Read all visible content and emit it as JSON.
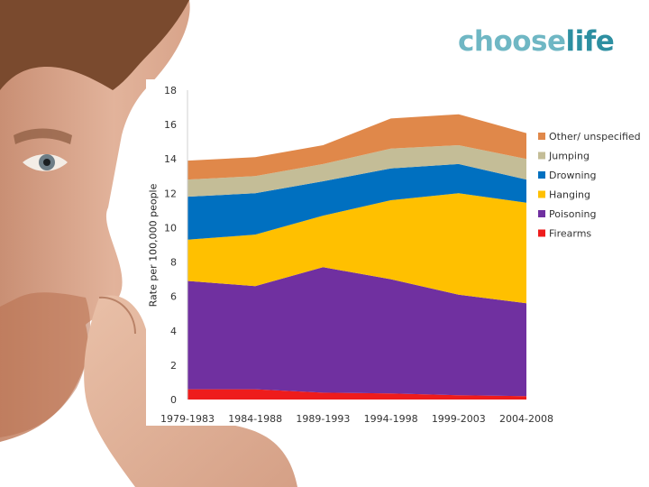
{
  "brand": {
    "part1": "choose",
    "part2": "life"
  },
  "chart_data": {
    "type": "area",
    "stacked": true,
    "categories": [
      "1979-1983",
      "1984-1988",
      "1989-1993",
      "1994-1998",
      "1999-2003",
      "2004-2008"
    ],
    "ylabel": "Rate per 100,000 people",
    "xlabel": "",
    "ylim": [
      0,
      18
    ],
    "yticks": [
      0,
      2,
      4,
      6,
      8,
      10,
      12,
      14,
      16,
      18
    ],
    "grid": false,
    "legend_position": "right",
    "series": [
      {
        "name": "Firearms",
        "color": "#ee1c1c",
        "values": [
          0.6,
          0.6,
          0.4,
          0.35,
          0.25,
          0.2
        ]
      },
      {
        "name": "Poisoning",
        "color": "#7030a0",
        "values": [
          6.3,
          6.0,
          7.3,
          6.65,
          5.85,
          5.4
        ]
      },
      {
        "name": "Hanging",
        "color": "#ffc000",
        "values": [
          2.4,
          3.0,
          3.0,
          4.6,
          5.9,
          5.85
        ]
      },
      {
        "name": "Drowning",
        "color": "#0070c0",
        "values": [
          2.5,
          2.4,
          2.0,
          1.85,
          1.7,
          1.35
        ]
      },
      {
        "name": "Jumping",
        "color": "#c4bd97",
        "values": [
          1.0,
          1.0,
          1.0,
          1.15,
          1.1,
          1.2
        ]
      },
      {
        "name": "Other/ unspecified",
        "color": "#e0884a",
        "values": [
          1.1,
          1.1,
          1.1,
          1.75,
          1.8,
          1.5
        ]
      }
    ]
  }
}
